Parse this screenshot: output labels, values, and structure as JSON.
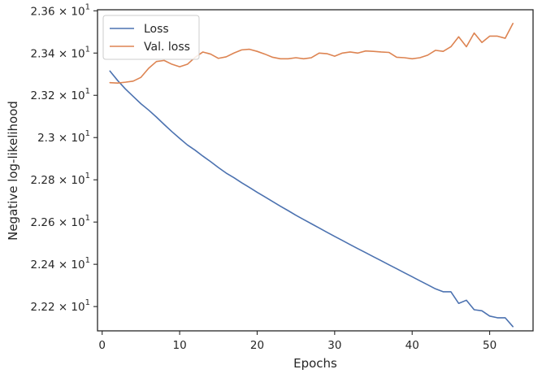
{
  "chart_data": {
    "type": "line",
    "xlabel": "Epochs",
    "ylabel": "Negative log-likelihood",
    "xlim": [
      -0.6,
      55.6
    ],
    "ylim": [
      22.085,
      23.605
    ],
    "x_ticks": [
      0,
      10,
      20,
      30,
      40,
      50
    ],
    "x_tick_labels": [
      "0",
      "10",
      "20",
      "30",
      "40",
      "50"
    ],
    "y_ticks": [
      22.2,
      22.4,
      22.6,
      22.8,
      23.0,
      23.2,
      23.4,
      23.6
    ],
    "y_tick_labels": [
      {
        "mantissa": "2.22",
        "base": "10",
        "exp": "1"
      },
      {
        "mantissa": "2.24",
        "base": "10",
        "exp": "1"
      },
      {
        "mantissa": "2.26",
        "base": "10",
        "exp": "1"
      },
      {
        "mantissa": "2.28",
        "base": "10",
        "exp": "1"
      },
      {
        "mantissa": "2.3",
        "base": "10",
        "exp": "1"
      },
      {
        "mantissa": "2.32",
        "base": "10",
        "exp": "1"
      },
      {
        "mantissa": "2.34",
        "base": "10",
        "exp": "1"
      },
      {
        "mantissa": "2.36",
        "base": "10",
        "exp": "1"
      }
    ],
    "grid": false,
    "legend_position": "top-left",
    "x": [
      1,
      2,
      3,
      4,
      5,
      6,
      7,
      8,
      9,
      10,
      11,
      12,
      13,
      14,
      15,
      16,
      17,
      18,
      19,
      20,
      21,
      22,
      23,
      24,
      25,
      26,
      27,
      28,
      29,
      30,
      31,
      32,
      33,
      34,
      35,
      36,
      37,
      38,
      39,
      40,
      41,
      42,
      43,
      44,
      45,
      46,
      47,
      48,
      49,
      50,
      51,
      52,
      53
    ],
    "series": [
      {
        "name": "Loss",
        "color": "#4c72b0",
        "values": [
          23.315,
          23.27,
          23.23,
          23.195,
          23.16,
          23.13,
          23.097,
          23.062,
          23.028,
          22.996,
          22.965,
          22.94,
          22.912,
          22.886,
          22.858,
          22.832,
          22.81,
          22.786,
          22.764,
          22.741,
          22.719,
          22.697,
          22.675,
          22.654,
          22.632,
          22.612,
          22.592,
          22.572,
          22.552,
          22.532,
          22.513,
          22.493,
          22.474,
          22.455,
          22.436,
          22.417,
          22.398,
          22.379,
          22.36,
          22.341,
          22.322,
          22.303,
          22.284,
          22.27,
          22.27,
          22.215,
          22.23,
          22.185,
          22.18,
          22.155,
          22.147,
          22.147,
          22.105
        ]
      },
      {
        "name": "Val. loss",
        "color": "#dd8452",
        "values": [
          23.26,
          23.258,
          23.262,
          23.267,
          23.285,
          23.328,
          23.36,
          23.365,
          23.347,
          23.335,
          23.347,
          23.38,
          23.405,
          23.395,
          23.375,
          23.382,
          23.4,
          23.415,
          23.418,
          23.408,
          23.395,
          23.38,
          23.373,
          23.373,
          23.378,
          23.373,
          23.378,
          23.4,
          23.397,
          23.385,
          23.4,
          23.405,
          23.4,
          23.41,
          23.408,
          23.405,
          23.403,
          23.38,
          23.378,
          23.373,
          23.378,
          23.39,
          23.413,
          23.408,
          23.43,
          23.477,
          23.43,
          23.495,
          23.45,
          23.48,
          23.48,
          23.47,
          23.54
        ]
      }
    ]
  }
}
